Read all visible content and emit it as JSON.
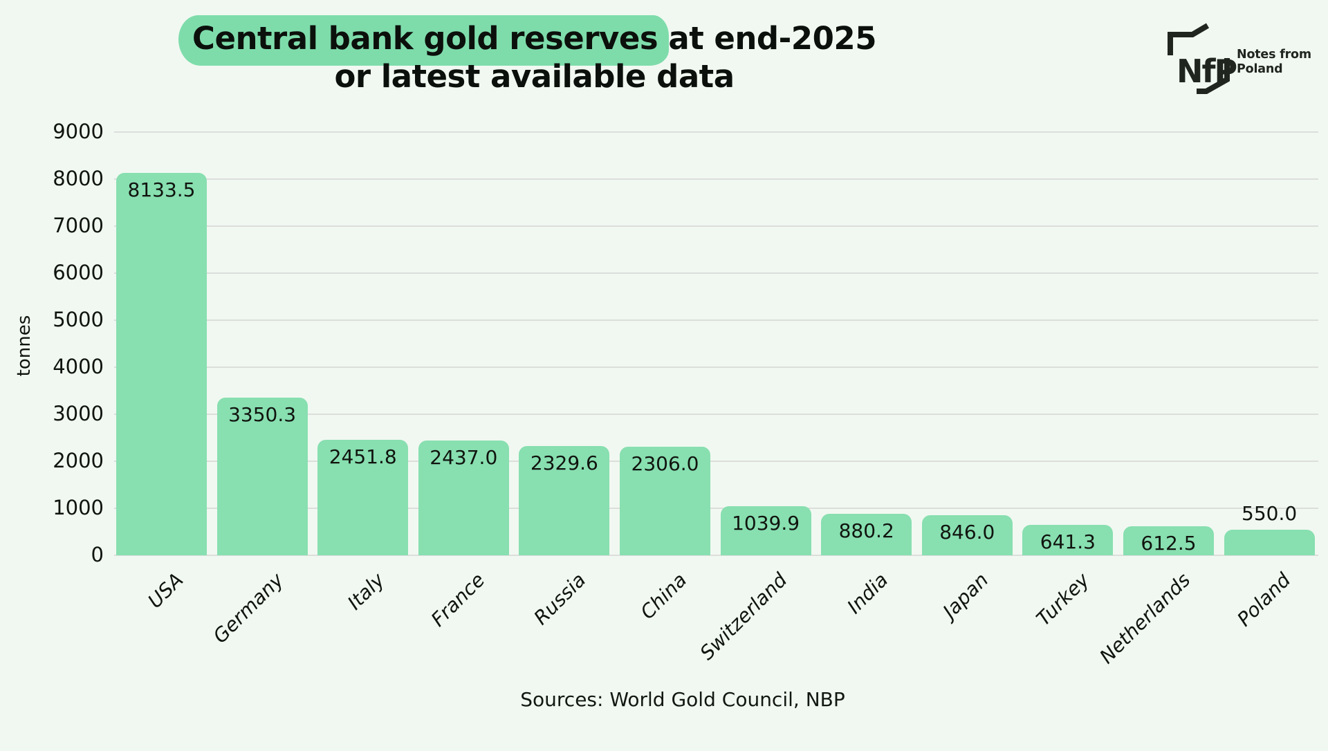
{
  "header": {
    "title_highlight": "Central bank gold reserves",
    "title_rest": " at end-2025",
    "title_line2": "or latest available data"
  },
  "logo": {
    "abbr": "NfP",
    "name_line1": "Notes from",
    "name_line2": "Poland"
  },
  "chart_data": {
    "type": "bar",
    "title": "Central bank gold reserves at end-2025 or latest available data",
    "xlabel": "",
    "ylabel": "tonnes",
    "ylim": [
      0,
      9000
    ],
    "grid": "horizontal",
    "legend": "none",
    "categories": [
      "USA",
      "Germany",
      "Italy",
      "France",
      "Russia",
      "China",
      "Switzerland",
      "India",
      "Japan",
      "Turkey",
      "Netherlands",
      "Poland"
    ],
    "values": [
      8133.5,
      3350.3,
      2451.8,
      2437.0,
      2329.6,
      2306.0,
      1039.9,
      880.2,
      846.0,
      641.3,
      612.5,
      550.0
    ],
    "value_labels": [
      "8133.5",
      "3350.3",
      "2451.8",
      "2437.0",
      "2329.6",
      "2306.0",
      "1039.9",
      "880.2",
      "846.0",
      "641.3",
      "612.5",
      "550.0"
    ],
    "yticks": [
      0,
      1000,
      2000,
      3000,
      4000,
      5000,
      6000,
      7000,
      8000,
      9000
    ],
    "outside_label_categories": [
      "Poland"
    ]
  },
  "footer": {
    "source": "Sources: World Gold Council, NBP"
  },
  "colors": {
    "background": "#f1f8f1",
    "bar": "#88dfb0",
    "title_highlight": "#7edcab",
    "gridline": "#dcdedc",
    "text": "#10140f",
    "logo": "#20251f"
  }
}
